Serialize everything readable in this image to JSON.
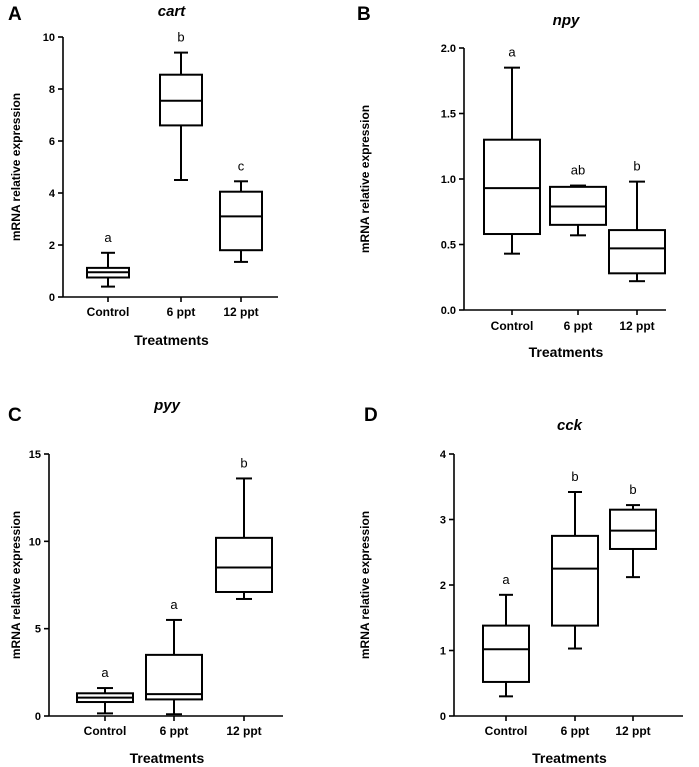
{
  "chart_data": [
    {
      "id": "A",
      "type": "box",
      "panel_label": "A",
      "title": "cart",
      "ylabel": "mRNA relative expression",
      "xlabel": "Treatments",
      "ylim": [
        0,
        10
      ],
      "yticks": [
        0,
        2,
        4,
        6,
        8,
        10
      ],
      "categories": [
        "Control",
        "6 ppt",
        "12 ppt"
      ],
      "boxes": [
        {
          "min": 0.4,
          "q1": 0.75,
          "median": 0.95,
          "q3": 1.12,
          "max": 1.7,
          "sig": "a"
        },
        {
          "min": 4.5,
          "q1": 6.6,
          "median": 7.55,
          "q3": 8.55,
          "max": 9.4,
          "sig": "b"
        },
        {
          "min": 1.35,
          "q1": 1.8,
          "median": 3.1,
          "q3": 4.05,
          "max": 4.45,
          "sig": "c"
        }
      ]
    },
    {
      "id": "B",
      "type": "box",
      "panel_label": "B",
      "title": "npy",
      "ylabel": "mRNA relative expression",
      "xlabel": "Treatments",
      "ylim": [
        0,
        2.0
      ],
      "yticks": [
        "0.0",
        "0.5",
        "1.0",
        "1.5",
        "2.0"
      ],
      "categories": [
        "Control",
        "6 ppt",
        "12 ppt"
      ],
      "boxes": [
        {
          "min": 0.43,
          "q1": 0.58,
          "median": 0.93,
          "q3": 1.3,
          "max": 1.85,
          "sig": "a"
        },
        {
          "min": 0.57,
          "q1": 0.65,
          "median": 0.79,
          "q3": 0.94,
          "max": 0.95,
          "sig": "ab"
        },
        {
          "min": 0.22,
          "q1": 0.28,
          "median": 0.47,
          "q3": 0.61,
          "max": 0.98,
          "sig": "b"
        }
      ]
    },
    {
      "id": "C",
      "type": "box",
      "panel_label": "C",
      "title": "pyy",
      "ylabel": "mRNA relative expression",
      "xlabel": "Treatments",
      "ylim": [
        0,
        15
      ],
      "yticks": [
        0,
        5,
        10,
        15
      ],
      "categories": [
        "Control",
        "6 ppt",
        "12 ppt"
      ],
      "boxes": [
        {
          "min": 0.15,
          "q1": 0.8,
          "median": 1.05,
          "q3": 1.3,
          "max": 1.6,
          "sig": "a"
        },
        {
          "min": 0.1,
          "q1": 0.95,
          "median": 1.25,
          "q3": 3.5,
          "max": 5.5,
          "sig": "a"
        },
        {
          "min": 6.7,
          "q1": 7.1,
          "median": 8.5,
          "q3": 10.2,
          "max": 13.6,
          "sig": "b"
        }
      ]
    },
    {
      "id": "D",
      "type": "box",
      "panel_label": "D",
      "title": "cck",
      "ylabel": "mRNA relative expression",
      "xlabel": "Treatments",
      "ylim": [
        0,
        4
      ],
      "yticks": [
        0,
        1,
        2,
        3,
        4
      ],
      "categories": [
        "Control",
        "6 ppt",
        "12 ppt"
      ],
      "boxes": [
        {
          "min": 0.3,
          "q1": 0.52,
          "median": 1.02,
          "q3": 1.38,
          "max": 1.85,
          "sig": "a"
        },
        {
          "min": 1.03,
          "q1": 1.38,
          "median": 2.25,
          "q3": 2.75,
          "max": 3.42,
          "sig": "b"
        },
        {
          "min": 2.12,
          "q1": 2.55,
          "median": 2.83,
          "q3": 3.15,
          "max": 3.22,
          "sig": "b"
        }
      ]
    }
  ]
}
